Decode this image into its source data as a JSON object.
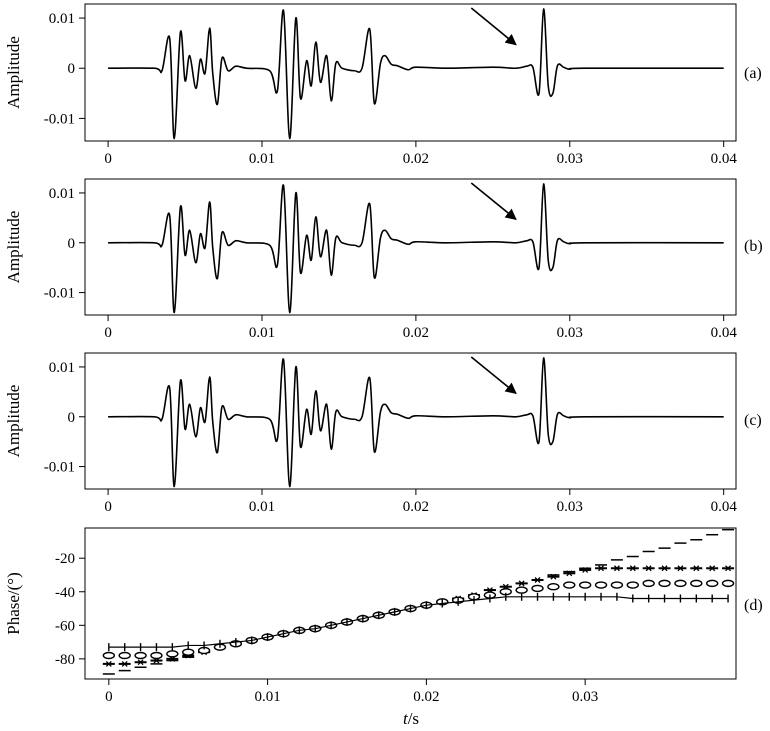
{
  "panel_tags": [
    "(a)",
    "(b)",
    "(c)",
    "(d)"
  ],
  "axis_titles": {
    "amplitude": "Amplitude",
    "phase": "Phase/(°)",
    "time_italic": "t",
    "time_unit": "/s"
  },
  "chart_data": [
    {
      "type": "line",
      "panel": "(a)",
      "ylabel": "Amplitude",
      "xlim": [
        -0.0015,
        0.0408
      ],
      "ylim": [
        -0.0145,
        0.0128
      ],
      "x_ticks": [
        0,
        0.01,
        0.02,
        0.03,
        0.04
      ],
      "x_tick_labels": [
        "0",
        "0.01",
        "0.02",
        "0.03",
        "0.04"
      ],
      "y_ticks": [
        0.01,
        0,
        -0.01
      ],
      "y_tick_labels": [
        "0.01",
        "0",
        "-0.01"
      ],
      "series": [
        {
          "x": [
            0,
            0.003,
            0.0035,
            0.004,
            0.0043,
            0.0047,
            0.005,
            0.0053,
            0.0057,
            0.006,
            0.0063,
            0.0066,
            0.0068,
            0.0071,
            0.0074,
            0.0078,
            0.0083,
            0.009,
            0.0105,
            0.011,
            0.0114,
            0.0118,
            0.0122,
            0.0125,
            0.0129,
            0.0132,
            0.0135,
            0.0138,
            0.0142,
            0.0145,
            0.0148,
            0.0152,
            0.016,
            0.0165,
            0.017,
            0.0173,
            0.0177,
            0.018,
            0.0184,
            0.0188,
            0.0195,
            0.02,
            0.022,
            0.025,
            0.0265,
            0.0272,
            0.0276,
            0.028,
            0.0283,
            0.0286,
            0.0289,
            0.0292,
            0.0296,
            0.03,
            0.031,
            0.04
          ],
          "y": [
            0,
            0,
            -0.0005,
            0.006,
            -0.014,
            0.0072,
            -0.0025,
            0.0025,
            -0.004,
            0.0018,
            -0.001,
            0.008,
            -0.001,
            -0.0072,
            0.002,
            -0.0005,
            0.0004,
            0,
            -0.0005,
            -0.0045,
            0.0115,
            -0.014,
            0.01,
            -0.006,
            0.0015,
            -0.0035,
            0.0052,
            -0.0028,
            0.0025,
            -0.0065,
            0.001,
            0,
            -0.0005,
            0,
            0.0078,
            -0.007,
            0.001,
            0.0025,
            0.0008,
            0.0005,
            -0.0003,
            0.0002,
            0,
            0.0002,
            0,
            0.0004,
            0.0002,
            -0.005,
            0.0118,
            -0.0035,
            -0.005,
            0.0005,
            0.0002,
            -0.0002,
            0,
            0
          ]
        }
      ],
      "annotations": [
        {
          "type": "arrow",
          "from": [
            0.0236,
            0.012
          ],
          "to": [
            0.0265,
            0.0047
          ]
        }
      ]
    },
    {
      "type": "line",
      "panel": "(b)",
      "ylabel": "Amplitude",
      "xlim": [
        -0.0015,
        0.0408
      ],
      "ylim": [
        -0.0145,
        0.0128
      ],
      "x_ticks": [
        0,
        0.01,
        0.02,
        0.03,
        0.04
      ],
      "x_tick_labels": [
        "0",
        "0.01",
        "0.02",
        "0.03",
        "0.04"
      ],
      "y_ticks": [
        0.01,
        0,
        -0.01
      ],
      "y_tick_labels": [
        "0.01",
        "0",
        "-0.01"
      ],
      "series": [
        {
          "x": [
            0,
            0.003,
            0.0035,
            0.004,
            0.0043,
            0.0047,
            0.005,
            0.0053,
            0.0057,
            0.006,
            0.0063,
            0.0066,
            0.0068,
            0.0071,
            0.0074,
            0.0078,
            0.0083,
            0.009,
            0.0105,
            0.011,
            0.0114,
            0.0118,
            0.0122,
            0.0125,
            0.0129,
            0.0132,
            0.0135,
            0.0138,
            0.0142,
            0.0145,
            0.0148,
            0.0152,
            0.016,
            0.0165,
            0.017,
            0.0173,
            0.0177,
            0.018,
            0.0184,
            0.0188,
            0.0195,
            0.02,
            0.022,
            0.025,
            0.0265,
            0.0272,
            0.0276,
            0.028,
            0.0283,
            0.0286,
            0.0289,
            0.0292,
            0.0296,
            0.03,
            0.031,
            0.04
          ],
          "y": [
            0,
            0,
            -0.0005,
            0.0055,
            -0.014,
            0.0072,
            -0.0025,
            0.0025,
            -0.004,
            0.0018,
            -0.001,
            0.0082,
            -0.001,
            -0.0072,
            0.002,
            -0.0005,
            0.0004,
            0,
            -0.0005,
            -0.0045,
            0.0115,
            -0.014,
            0.01,
            -0.006,
            0.0015,
            -0.0035,
            0.0052,
            -0.0028,
            0.0025,
            -0.0065,
            0.001,
            0,
            -0.0005,
            0,
            0.0078,
            -0.007,
            0.001,
            0.0025,
            0.0008,
            0.0005,
            -0.0003,
            0.0002,
            0,
            0.0002,
            0,
            0.0004,
            0.0002,
            -0.005,
            0.0118,
            -0.0035,
            -0.005,
            0.0005,
            0.0002,
            -0.0002,
            0,
            0
          ]
        }
      ],
      "annotations": [
        {
          "type": "arrow",
          "from": [
            0.0236,
            0.012
          ],
          "to": [
            0.0265,
            0.0047
          ]
        }
      ]
    },
    {
      "type": "line",
      "panel": "(c)",
      "ylabel": "Amplitude",
      "xlim": [
        -0.0015,
        0.0408
      ],
      "ylim": [
        -0.0145,
        0.0128
      ],
      "x_ticks": [
        0,
        0.01,
        0.02,
        0.03,
        0.04
      ],
      "x_tick_labels": [
        "0",
        "0.01",
        "0.02",
        "0.03",
        "0.04"
      ],
      "y_ticks": [
        0.01,
        0,
        -0.01
      ],
      "y_tick_labels": [
        "0.01",
        "0",
        "-0.01"
      ],
      "series": [
        {
          "x": [
            0,
            0.003,
            0.0035,
            0.004,
            0.0043,
            0.0047,
            0.005,
            0.0053,
            0.0057,
            0.006,
            0.0063,
            0.0066,
            0.0068,
            0.0071,
            0.0074,
            0.0078,
            0.0083,
            0.009,
            0.0105,
            0.011,
            0.0114,
            0.0118,
            0.0122,
            0.0125,
            0.0129,
            0.0132,
            0.0135,
            0.0138,
            0.0142,
            0.0145,
            0.0148,
            0.0152,
            0.016,
            0.0165,
            0.017,
            0.0173,
            0.0177,
            0.018,
            0.0184,
            0.0188,
            0.0195,
            0.02,
            0.022,
            0.025,
            0.0265,
            0.0272,
            0.0276,
            0.028,
            0.0283,
            0.0286,
            0.0289,
            0.0292,
            0.0296,
            0.03,
            0.031,
            0.04
          ],
          "y": [
            0,
            0,
            -0.0005,
            0.0058,
            -0.014,
            0.0072,
            -0.0025,
            0.0025,
            -0.004,
            0.0018,
            -0.001,
            0.008,
            -0.001,
            -0.0072,
            0.002,
            -0.0005,
            0.0004,
            0,
            -0.0005,
            -0.0045,
            0.0115,
            -0.014,
            0.01,
            -0.006,
            0.0015,
            -0.0035,
            0.0052,
            -0.0028,
            0.0025,
            -0.0065,
            0.001,
            0,
            -0.0005,
            0,
            0.0078,
            -0.007,
            0.001,
            0.0025,
            0.0008,
            0.0005,
            -0.0003,
            0.0002,
            0,
            0.0002,
            0,
            0.0004,
            0.0002,
            -0.005,
            0.0118,
            -0.0035,
            -0.005,
            0.0005,
            0.0002,
            -0.0002,
            0,
            0
          ]
        }
      ],
      "annotations": [
        {
          "type": "arrow",
          "from": [
            0.0236,
            0.012
          ],
          "to": [
            0.0265,
            0.0047
          ]
        }
      ]
    },
    {
      "type": "line",
      "panel": "(d)",
      "xlabel": "t/s",
      "ylabel": "Phase/(°)",
      "xlim": [
        -0.0015,
        0.0395
      ],
      "ylim": [
        -92,
        -2
      ],
      "x_ticks": [
        0,
        0.01,
        0.02,
        0.03
      ],
      "x_tick_labels": [
        "0",
        "0.01",
        "0.02",
        "0.03"
      ],
      "y_ticks": [
        -20,
        -40,
        -60,
        -80
      ],
      "y_tick_labels": [
        "-20",
        "-40",
        "-60",
        "-80"
      ],
      "x": [
        0,
        0.001,
        0.002,
        0.003,
        0.004,
        0.005,
        0.006,
        0.007,
        0.008,
        0.009,
        0.01,
        0.011,
        0.012,
        0.013,
        0.014,
        0.015,
        0.016,
        0.017,
        0.018,
        0.019,
        0.02,
        0.021,
        0.022,
        0.023,
        0.024,
        0.025,
        0.026,
        0.027,
        0.028,
        0.029,
        0.03,
        0.031,
        0.032,
        0.033,
        0.034,
        0.035,
        0.036,
        0.037,
        0.038,
        0.039
      ],
      "series": [
        {
          "marker": "dash",
          "values": [
            -89,
            -87,
            -85,
            -83,
            -81,
            -79,
            -76,
            -73,
            -71,
            -69,
            -67,
            -65,
            -63,
            -62,
            -60,
            -58,
            -56,
            -54,
            -52,
            -50,
            -48,
            -46,
            -44,
            -42,
            -39,
            -37,
            -35,
            -33,
            -30,
            -28,
            -26,
            -24,
            -21,
            -19,
            -16,
            -14,
            -11,
            -9,
            -6,
            -3
          ]
        },
        {
          "marker": "x",
          "values": [
            -83,
            -83,
            -82,
            -81,
            -80,
            -78,
            -76,
            -73,
            -71,
            -69,
            -67,
            -65,
            -63,
            -62,
            -60,
            -58,
            -56,
            -54,
            -52,
            -50,
            -48,
            -46,
            -44,
            -42,
            -39,
            -37,
            -35,
            -33,
            -31,
            -29,
            -27,
            -26,
            -26,
            -26,
            -26,
            -26,
            -26,
            -26,
            -26,
            -26
          ]
        },
        {
          "marker": "o",
          "values": [
            -78,
            -78,
            -78,
            -78,
            -77,
            -76,
            -75,
            -73,
            -71,
            -69,
            -67,
            -65,
            -63,
            -62,
            -60,
            -58,
            -56,
            -54,
            -52,
            -50,
            -48,
            -46,
            -45,
            -43,
            -42,
            -40,
            -39,
            -38,
            -37,
            -36,
            -36,
            -36,
            -36,
            -36,
            -35,
            -35,
            -35,
            -35,
            -35,
            -35
          ]
        },
        {
          "marker": "plus",
          "values": [
            -73,
            -73,
            -73,
            -73,
            -73,
            -72,
            -72,
            -71,
            -70,
            -69,
            -67,
            -65,
            -63,
            -62,
            -60,
            -58,
            -56,
            -54,
            -52,
            -50,
            -48,
            -47,
            -46,
            -45,
            -44,
            -43,
            -43,
            -43,
            -43,
            -43,
            -43,
            -43,
            -43,
            -44,
            -44,
            -44,
            -44,
            -44,
            -44,
            -44
          ]
        }
      ]
    }
  ]
}
